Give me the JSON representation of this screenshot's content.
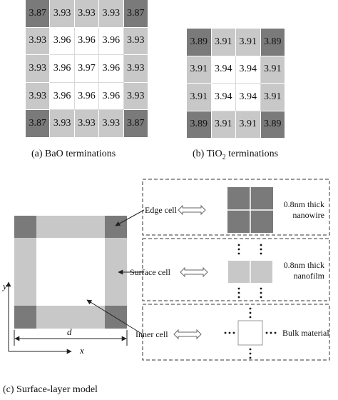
{
  "grid_a": {
    "cells": [
      [
        "3.87",
        "3.93",
        "3.93",
        "3.93",
        "3.87"
      ],
      [
        "3.93",
        "3.96",
        "3.96",
        "3.96",
        "3.93"
      ],
      [
        "3.93",
        "3.96",
        "3.97",
        "3.96",
        "3.93"
      ],
      [
        "3.93",
        "3.96",
        "3.96",
        "3.96",
        "3.93"
      ],
      [
        "3.87",
        "3.93",
        "3.93",
        "3.93",
        "3.87"
      ]
    ],
    "caption": "(a) BaO terminations"
  },
  "grid_b": {
    "cells": [
      [
        "3.89",
        "3.91",
        "3.91",
        "3.89"
      ],
      [
        "3.91",
        "3.94",
        "3.94",
        "3.91"
      ],
      [
        "3.91",
        "3.94",
        "3.94",
        "3.91"
      ],
      [
        "3.89",
        "3.91",
        "3.91",
        "3.89"
      ]
    ],
    "caption_prefix": "(b) TiO",
    "caption_sub": "2",
    "caption_suffix": " terminations"
  },
  "model": {
    "edge_cell_label": "Edge cell",
    "surface_cell_label": "Surface cell",
    "inner_cell_label": "Inner cell",
    "axis_y": "y",
    "axis_x": "x",
    "dimension": "d",
    "nanowire_line1": "0.8nm thick",
    "nanowire_line2": "nanowire",
    "nanofilm_line1": "0.8nm thick",
    "nanofilm_line2": "nanofilm",
    "bulk_label": "Bulk material",
    "caption": "(c) Surface-layer model"
  },
  "colors": {
    "dark": "#7a7a7a",
    "mid": "#c8c8c8",
    "light": "#ffffff"
  }
}
